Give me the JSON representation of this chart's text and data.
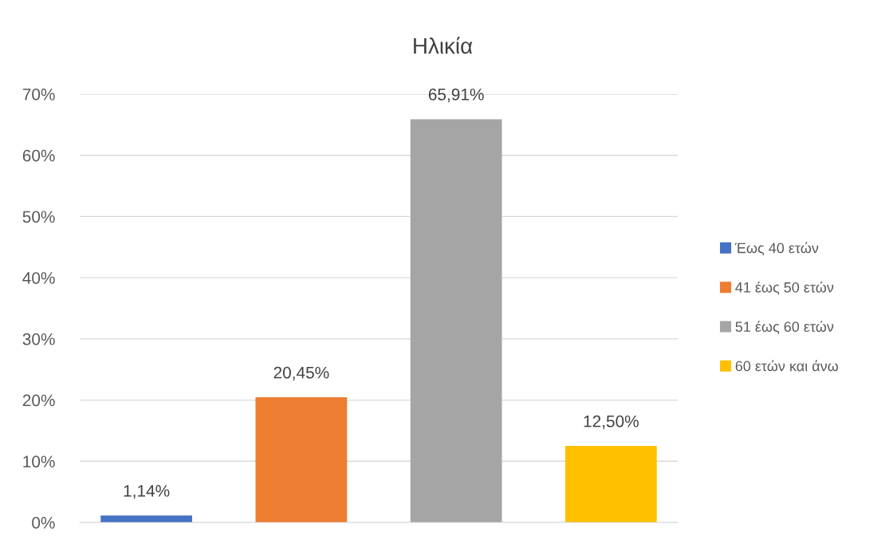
{
  "chart_data": {
    "type": "bar",
    "title": "Ηλικία",
    "categories": [
      null
    ],
    "series": [
      {
        "name": "Έως 40 ετών",
        "color": "#4472c4",
        "values": [
          1.14
        ],
        "value_labels": [
          "1,14%"
        ]
      },
      {
        "name": "41 έως 50 ετών",
        "color": "#ed7d31",
        "values": [
          20.45
        ],
        "value_labels": [
          "20,45%"
        ]
      },
      {
        "name": "51 έως 60 ετών",
        "color": "#a5a5a5",
        "values": [
          65.91
        ],
        "value_labels": [
          "65,91%"
        ]
      },
      {
        "name": "60 ετών και άνω",
        "color": "#ffc000",
        "values": [
          12.5
        ],
        "value_labels": [
          "12,50%"
        ]
      }
    ],
    "ylim": [
      0,
      70
    ],
    "yticks": [
      {
        "value": 0,
        "label": "0%"
      },
      {
        "value": 10,
        "label": "10%"
      },
      {
        "value": 20,
        "label": "20%"
      },
      {
        "value": 30,
        "label": "30%"
      },
      {
        "value": 40,
        "label": "40%"
      },
      {
        "value": 50,
        "label": "50%"
      },
      {
        "value": 60,
        "label": "60%"
      },
      {
        "value": 70,
        "label": "70%"
      }
    ],
    "grid": "y",
    "legend": "right"
  }
}
